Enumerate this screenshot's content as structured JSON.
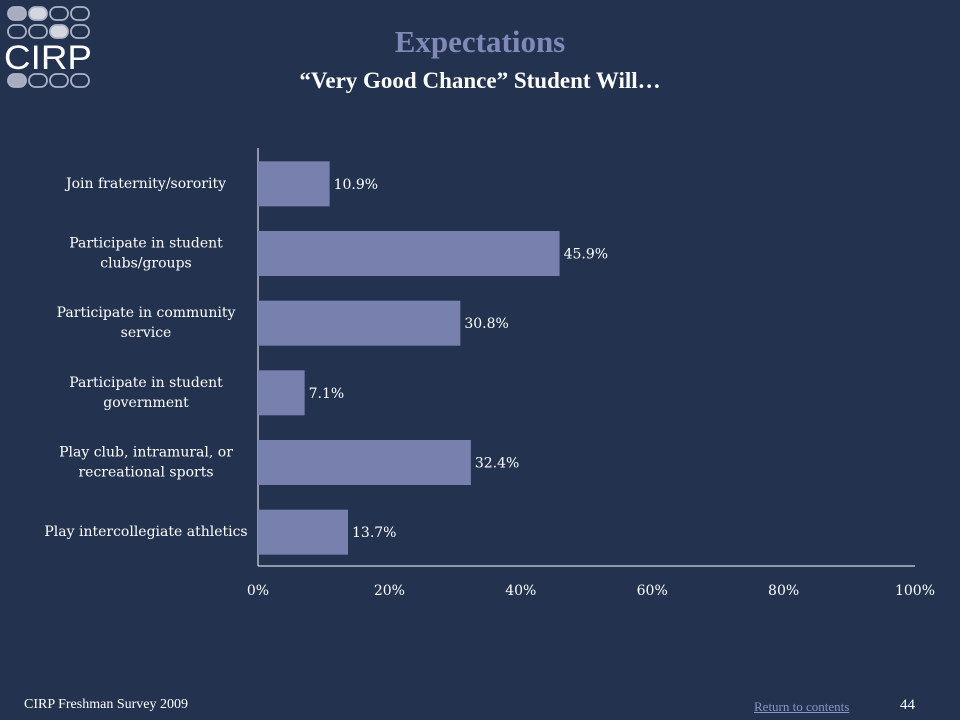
{
  "header": {
    "logo_text": "CIRP",
    "title": "Expectations",
    "subtitle": "“Very Good Chance” Student Will…"
  },
  "chart_data": {
    "type": "bar",
    "orientation": "horizontal",
    "categories": [
      [
        "Join fraternity/sorority"
      ],
      [
        "Participate in student",
        "clubs/groups"
      ],
      [
        "Participate in community",
        "service"
      ],
      [
        "Participate in student",
        "government"
      ],
      [
        "Play club, intramural, or",
        "recreational sports"
      ],
      [
        "Play intercollegiate athletics"
      ]
    ],
    "values": [
      10.9,
      45.9,
      30.8,
      7.1,
      32.4,
      13.7
    ],
    "value_labels": [
      "10.9%",
      "45.9%",
      "30.8%",
      "7.1%",
      "32.4%",
      "13.7%"
    ],
    "xlim": [
      0,
      100
    ],
    "xticks": [
      0,
      20,
      40,
      60,
      80,
      100
    ],
    "xtick_labels": [
      "0%",
      "20%",
      "40%",
      "60%",
      "80%",
      "100%"
    ],
    "grid": false,
    "colors": {
      "bar": "#7880ad",
      "axis": "#ffffff",
      "text": "#ffffff"
    }
  },
  "footer": {
    "survey": "CIRP Freshman Survey 2009",
    "link": "Return to contents",
    "page": "44"
  },
  "colors": {
    "background": "#22324f",
    "title": "#8189b8"
  }
}
